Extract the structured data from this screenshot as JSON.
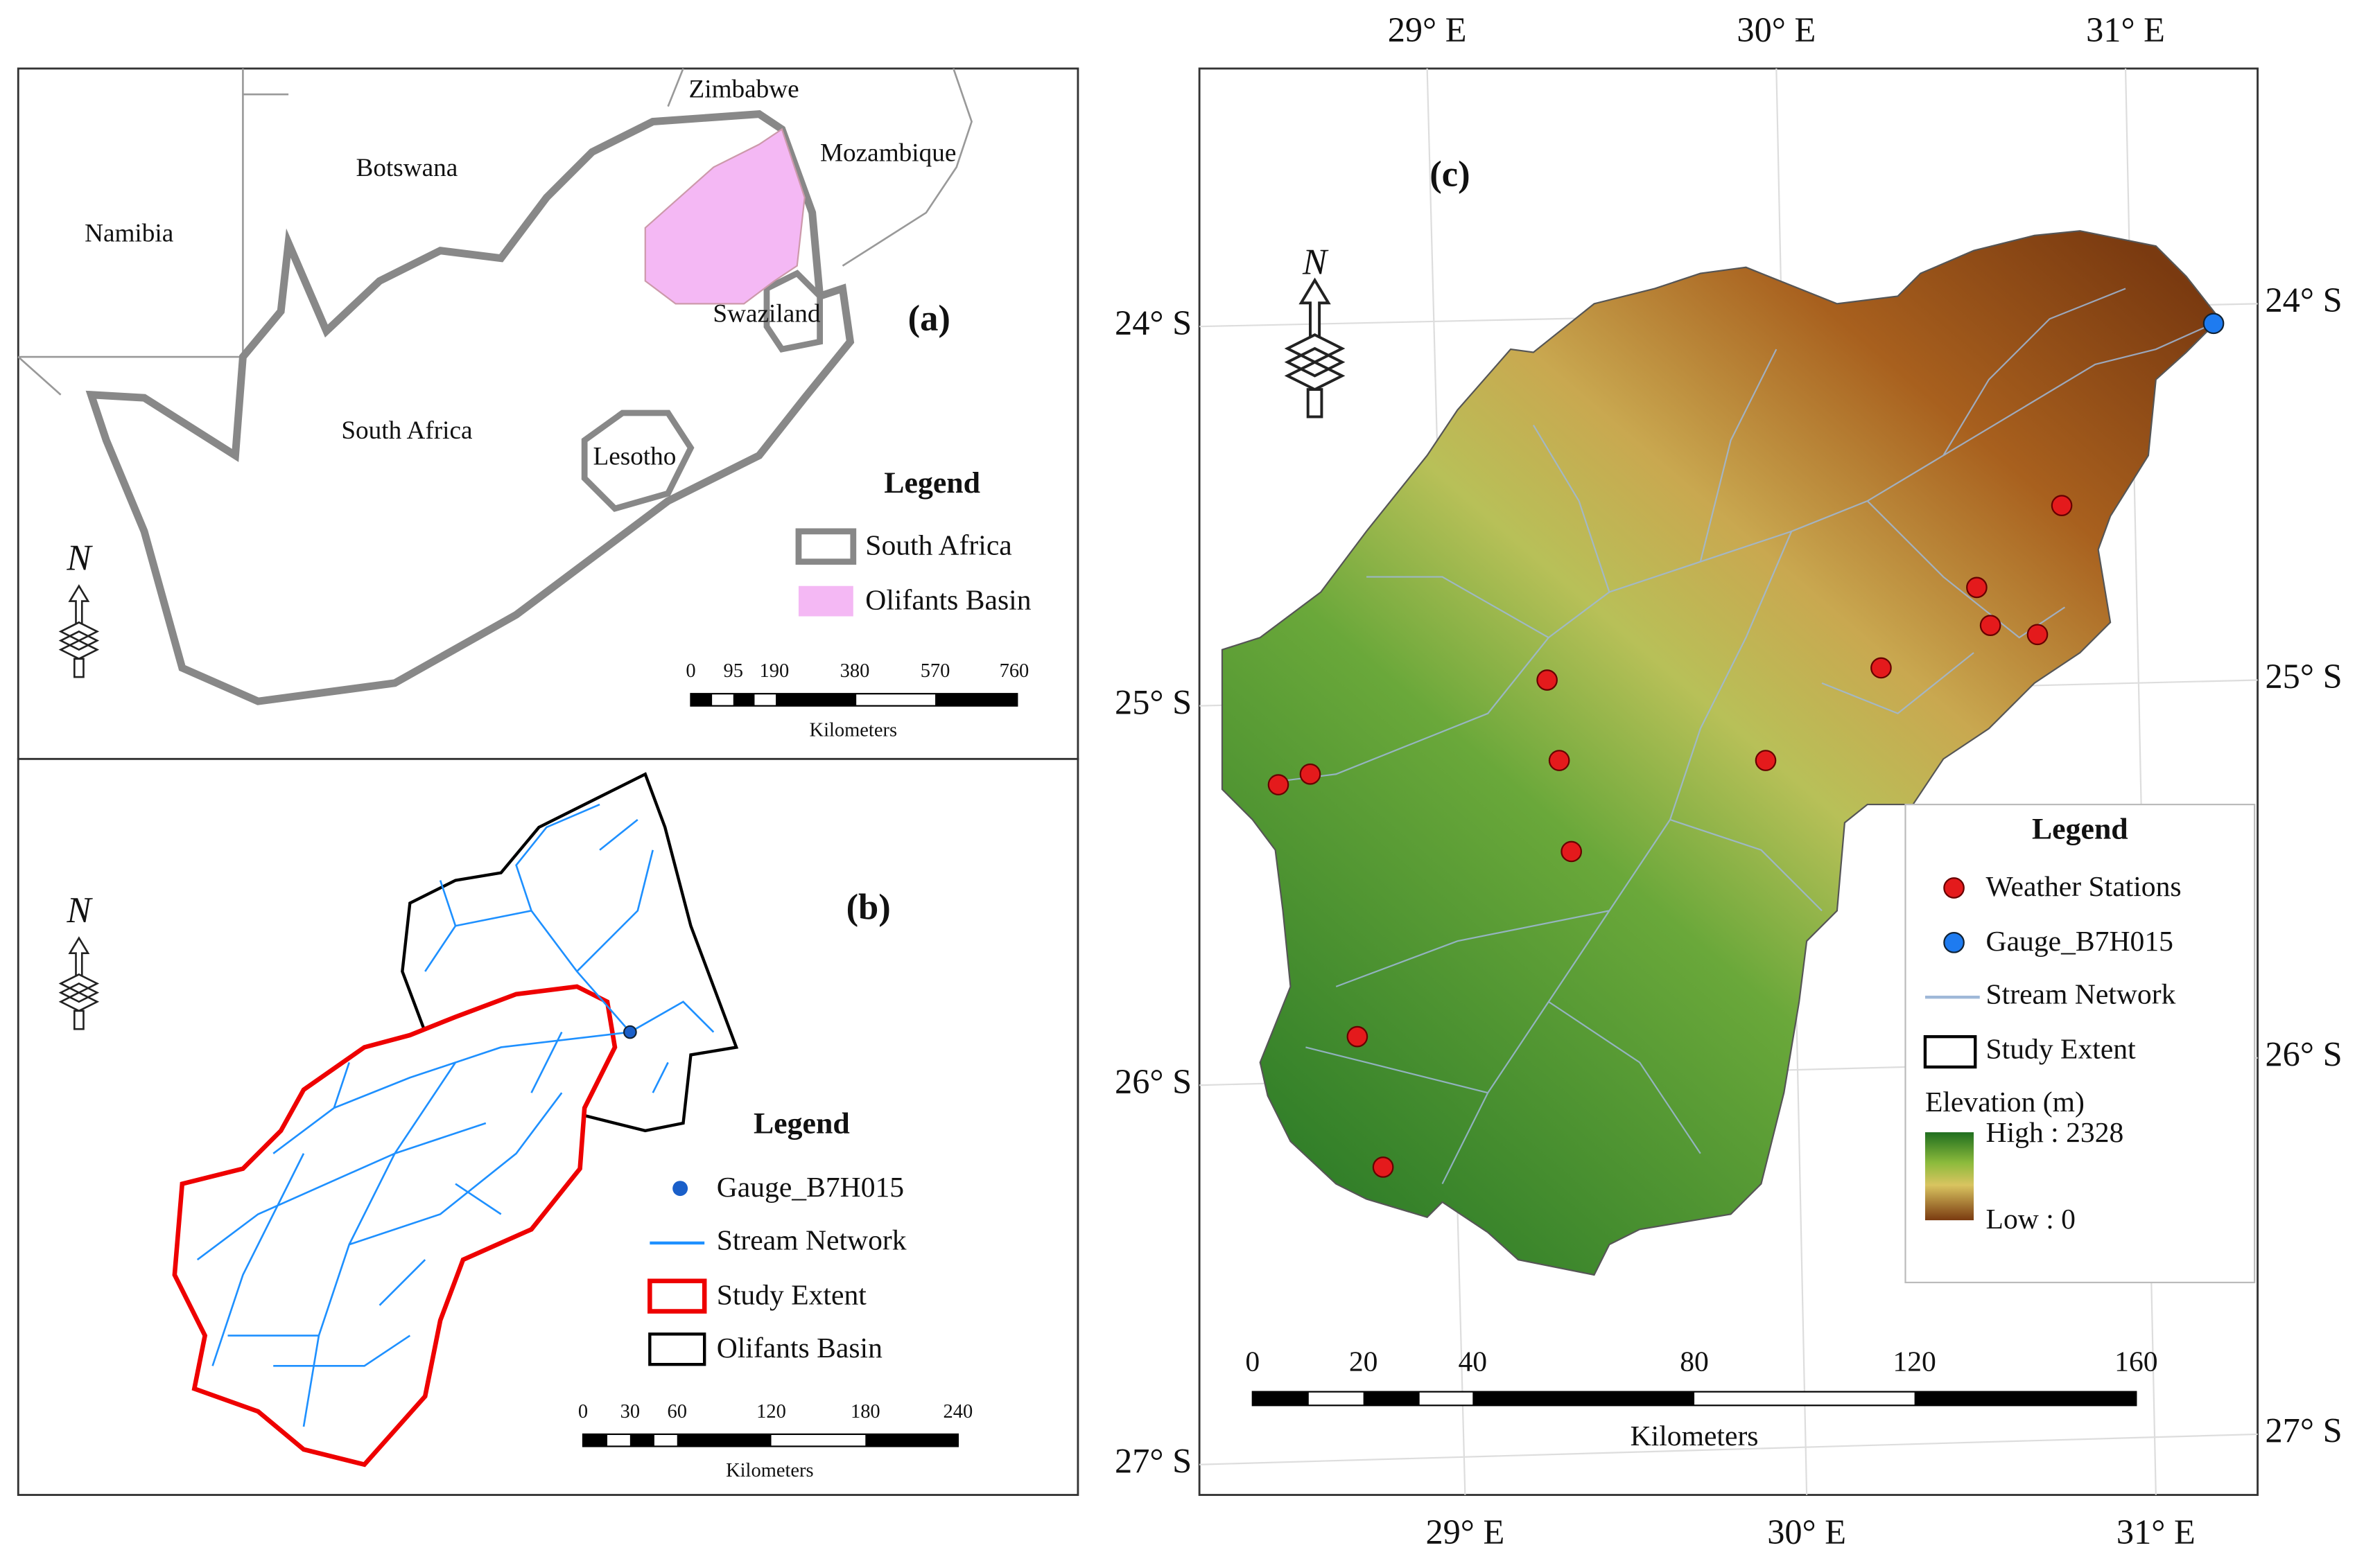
{
  "panel_a": {
    "label": "(a)",
    "countries": [
      "Zimbabwe",
      "Mozambique",
      "Botswana",
      "Namibia",
      "Swaziland",
      "South Africa",
      "Lesotho"
    ],
    "north": "N",
    "legend": {
      "title": "Legend",
      "items": [
        "South Africa",
        "Olifants Basin"
      ]
    },
    "scale": {
      "ticks": [
        "0",
        "95",
        "190",
        "380",
        "570",
        "760"
      ],
      "unit": "Kilometers"
    }
  },
  "panel_b": {
    "label": "(b)",
    "north": "N",
    "legend": {
      "title": "Legend",
      "items": [
        "Gauge_B7H015",
        "Stream Network",
        "Study Extent",
        "Olifants Basin"
      ]
    },
    "scale": {
      "ticks": [
        "0",
        "30",
        "60",
        "120",
        "180",
        "240"
      ],
      "unit": "Kilometers"
    }
  },
  "panel_c": {
    "label": "(c)",
    "north": "N",
    "lon_labels": [
      "29° E",
      "30° E",
      "31° E"
    ],
    "lat_labels": [
      "24° S",
      "25° S",
      "26° S",
      "27° S"
    ],
    "legend": {
      "title": "Legend",
      "items": [
        "Weather Stations",
        "Gauge_B7H015",
        "Stream Network",
        "Study Extent"
      ],
      "elevation_title": "Elevation (m)",
      "high": "High : 2328",
      "low": "Low : 0"
    },
    "scale": {
      "ticks": [
        "0",
        "20",
        "40",
        "80",
        "120",
        "160"
      ],
      "unit": "Kilometers"
    }
  }
}
